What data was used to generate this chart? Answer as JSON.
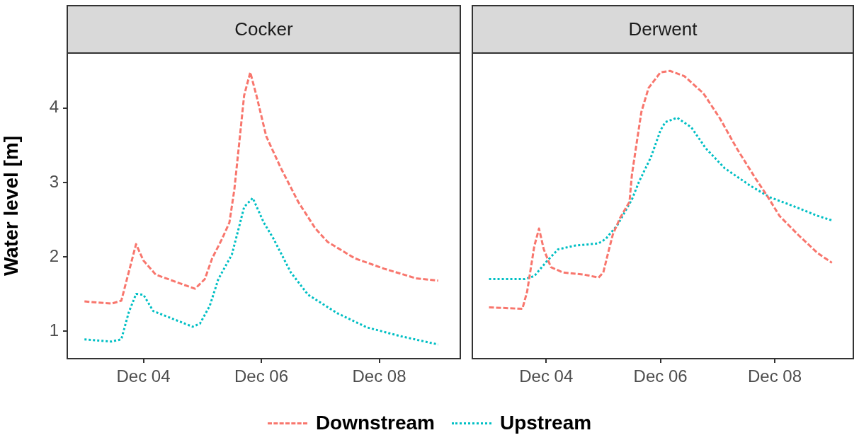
{
  "chart_data": [
    {
      "type": "line",
      "title": "Cocker",
      "ylabel": "Water level [m]",
      "legend": "bottom",
      "grid": false,
      "marker": "none",
      "ylim": [
        0.63,
        4.74
      ],
      "yticks": [
        1,
        2,
        3,
        4
      ],
      "xlim": [
        "--12-02T17:00",
        "--12-09T09:00"
      ],
      "xticks": [
        {
          "value": "--12-04",
          "label": "Dec 04"
        },
        {
          "value": "--12-06",
          "label": "Dec 06"
        },
        {
          "value": "--12-08",
          "label": "Dec 08"
        }
      ],
      "series": [
        {
          "name": "Downstream",
          "color": "#f8766d",
          "line_style": "dashed",
          "x": [
            "--12-03T00:00",
            "--12-03T11:00",
            "--12-03T15:00",
            "--12-03T21:00",
            "--12-04T00:00",
            "--12-04T05:00",
            "--12-04T21:00",
            "--12-05T01:00",
            "--12-05T04:00",
            "--12-05T08:00",
            "--12-05T11:00",
            "--12-05T13:00",
            "--12-05T15:00",
            "--12-05T17:00",
            "--12-05T19:30",
            "--12-05T22:00",
            "--12-06T02:00",
            "--12-06T08:00",
            "--12-06T15:00",
            "--12-06T22:00",
            "--12-07T03:00",
            "--12-07T14:00",
            "--12-08T02:00",
            "--12-08T15:00",
            "--12-09T00:00"
          ],
          "values": [
            1.4,
            1.37,
            1.41,
            2.17,
            1.95,
            1.76,
            1.57,
            1.7,
            1.98,
            2.24,
            2.46,
            2.9,
            3.53,
            4.17,
            4.48,
            4.17,
            3.62,
            3.19,
            2.74,
            2.38,
            2.2,
            1.98,
            1.84,
            1.71,
            1.68
          ]
        },
        {
          "name": "Upstream",
          "color": "#00bfc4",
          "line_style": "dotted",
          "x": [
            "--12-03T00:00",
            "--12-03T11:00",
            "--12-03T15:00",
            "--12-03T18:00",
            "--12-03T21:00",
            "--12-04T00:00",
            "--12-04T04:00",
            "--12-04T20:00",
            "--12-04T23:00",
            "--12-05T03:00",
            "--12-05T06:30",
            "--12-05T12:00",
            "--12-05T15:00",
            "--12-05T17:00",
            "--12-05T20:30",
            "--12-06T01:00",
            "--12-06T05:00",
            "--12-06T12:00",
            "--12-06T19:00",
            "--12-07T07:00",
            "--12-07T19:00",
            "--12-08T09:00",
            "--12-09T00:00"
          ],
          "values": [
            0.89,
            0.86,
            0.89,
            1.25,
            1.5,
            1.49,
            1.27,
            1.06,
            1.1,
            1.34,
            1.7,
            2.03,
            2.41,
            2.67,
            2.79,
            2.46,
            2.24,
            1.79,
            1.49,
            1.24,
            1.05,
            0.93,
            0.82
          ]
        }
      ]
    },
    {
      "type": "line",
      "title": "Derwent",
      "tick_labels": "x",
      "legend": "bottom",
      "grid": false,
      "marker": "none",
      "ylim": [
        0.63,
        4.74
      ],
      "yticks": [
        1,
        2,
        3,
        4
      ],
      "xlim": [
        "--12-02T17:00",
        "--12-09T09:00"
      ],
      "xticks": [
        {
          "value": "--12-04",
          "label": "Dec 04"
        },
        {
          "value": "--12-06",
          "label": "Dec 06"
        },
        {
          "value": "--12-08",
          "label": "Dec 08"
        }
      ],
      "series": [
        {
          "name": "Downstream",
          "color": "#f8766d",
          "line_style": "dashed",
          "x": [
            "--12-03T00:00",
            "--12-03T14:00",
            "--12-03T16:00",
            "--12-03T19:00",
            "--12-03T21:00",
            "--12-03T23:00",
            "--12-04T02:00",
            "--12-04T07:00",
            "--12-04T16:00",
            "--12-04T22:00",
            "--12-05T00:00",
            "--12-05T02:00",
            "--12-05T04:00",
            "--12-05T07:00",
            "--12-05T11:00",
            "--12-05T12:00",
            "--12-05T14:00",
            "--12-05T16:00",
            "--12-05T19:00",
            "--12-06T00:00",
            "--12-06T04:00",
            "--12-06T10:00",
            "--12-06T18:00",
            "--12-07T01:00",
            "--12-07T08:00",
            "--12-07T16:00",
            "--12-07T21:00",
            "--12-08T02:00",
            "--12-08T10:00",
            "--12-08T18:00",
            "--12-09T00:00"
          ],
          "values": [
            1.32,
            1.3,
            1.53,
            2.14,
            2.38,
            2.1,
            1.86,
            1.79,
            1.76,
            1.72,
            1.79,
            2.05,
            2.3,
            2.52,
            2.74,
            3.1,
            3.53,
            3.95,
            4.27,
            4.48,
            4.5,
            4.43,
            4.2,
            3.86,
            3.46,
            3.05,
            2.81,
            2.55,
            2.29,
            2.05,
            1.92
          ]
        },
        {
          "name": "Upstream",
          "color": "#00bfc4",
          "line_style": "dotted",
          "x": [
            "--12-03T00:00",
            "--12-03T15:00",
            "--12-03T19:00",
            "--12-04T00:00",
            "--12-04T05:00",
            "--12-04T12:00",
            "--12-04T22:00",
            "--12-05T01:00",
            "--12-05T06:00",
            "--12-05T12:00",
            "--12-05T15:00",
            "--12-05T20:00",
            "--12-06T00:00",
            "--12-06T02:00",
            "--12-06T07:00",
            "--12-06T13:00",
            "--12-06T19:00",
            "--12-07T03:00",
            "--12-07T14:00",
            "--12-07T22:00",
            "--12-08T08:00",
            "--12-08T18:00",
            "--12-09T00:00"
          ],
          "values": [
            1.7,
            1.7,
            1.74,
            1.93,
            2.1,
            2.15,
            2.18,
            2.24,
            2.43,
            2.77,
            3.01,
            3.34,
            3.7,
            3.81,
            3.87,
            3.74,
            3.46,
            3.19,
            2.95,
            2.8,
            2.68,
            2.55,
            2.49
          ]
        }
      ]
    }
  ]
}
